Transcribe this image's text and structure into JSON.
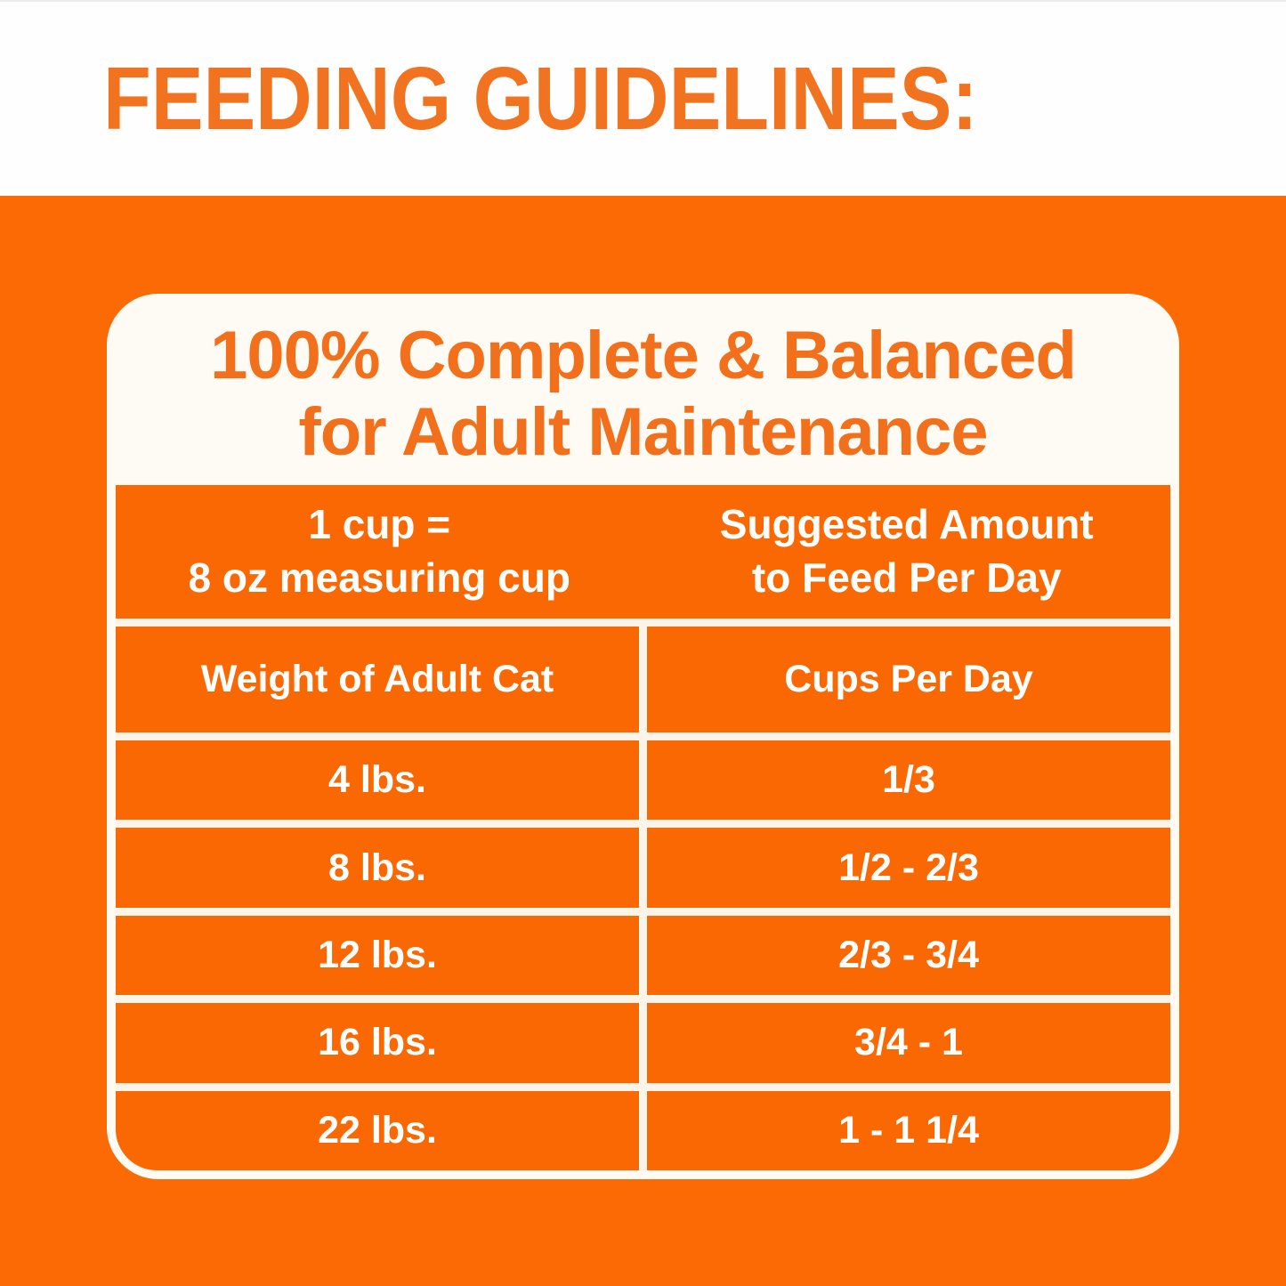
{
  "page_title": "FEEDING GUIDELINES:",
  "panel": {
    "heading_line1": "100% Complete & Balanced",
    "heading_line2": "for Adult Maintenance",
    "table": {
      "measure_note_line1": "1 cup =",
      "measure_note_line2": "8 oz measuring cup",
      "suggested_line1": "Suggested Amount",
      "suggested_line2": "to Feed Per Day",
      "col1_header": "Weight of Adult Cat",
      "col2_header": "Cups Per Day",
      "rows": [
        {
          "weight": "4 lbs.",
          "cups": "1/3"
        },
        {
          "weight": "8 lbs.",
          "cups": "1/2 - 2/3"
        },
        {
          "weight": "12 lbs.",
          "cups": "2/3 - 3/4"
        },
        {
          "weight": "16 lbs.",
          "cups": "3/4 - 1"
        },
        {
          "weight": "22 lbs.",
          "cups": "1 - 1 1/4"
        }
      ]
    }
  },
  "colors": {
    "background_orange": "#FB6A05",
    "cell_orange": "#F96802",
    "title_orange": "#F1731F",
    "heading_orange": "#F2701B",
    "grid_line_cream": "#FAF5E8",
    "panel_border_white": "#FDFBF4",
    "header_band_white": "#FEFEFE",
    "table_text_white": "#FFFFFF"
  },
  "chart_data": {
    "type": "table",
    "title": "FEEDING GUIDELINES: 100% Complete & Balanced for Adult Maintenance",
    "notes": [
      "1 cup = 8 oz measuring cup",
      "Suggested Amount to Feed Per Day"
    ],
    "columns": [
      "Weight of Adult Cat",
      "Cups Per Day"
    ],
    "rows": [
      [
        "4 lbs.",
        "1/3"
      ],
      [
        "8 lbs.",
        "1/2 - 2/3"
      ],
      [
        "12 lbs.",
        "2/3 - 3/4"
      ],
      [
        "16 lbs.",
        "3/4 - 1"
      ],
      [
        "22 lbs.",
        "1 - 1 1/4"
      ]
    ]
  }
}
